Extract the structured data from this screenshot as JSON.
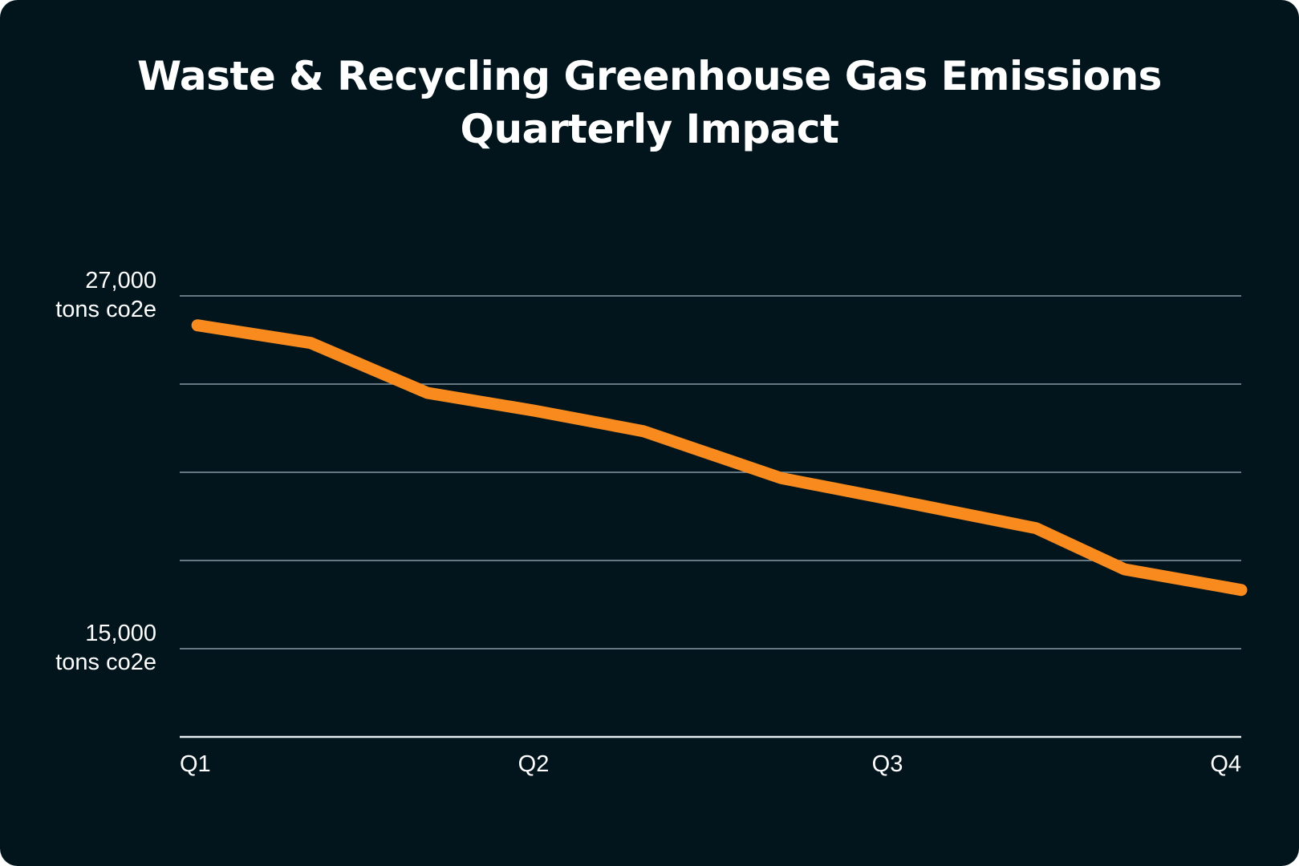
{
  "colors": {
    "background": "#02141c",
    "line": "#f98b1e",
    "grid": "#8a9aa3",
    "text": "#ffffff"
  },
  "chart_data": {
    "type": "line",
    "title": "Waste & Recycling Greenhouse Gas Emissions",
    "subtitle": "Quarterly Impact",
    "xlabel": "",
    "ylabel": "",
    "x_tick_labels": [
      "Q1",
      "Q2",
      "Q3",
      "Q4"
    ],
    "y_tick_labels": [
      {
        "value": 27000,
        "line1": "27,000",
        "line2": "tons co2e"
      },
      {
        "value": 15000,
        "line1": "15,000",
        "line2": "tons co2e"
      }
    ],
    "ylim": [
      12000,
      27000
    ],
    "y_gridlines": [
      27000,
      24000,
      21000,
      18000,
      15000
    ],
    "x_range": [
      1,
      4
    ],
    "series": [
      {
        "name": "Emissions",
        "x": [
          1.05,
          1.37,
          1.7,
          2.0,
          2.31,
          2.7,
          3.0,
          3.42,
          3.67,
          4.0
        ],
        "values": [
          26000,
          25400,
          23700,
          23100,
          22400,
          20800,
          20100,
          19100,
          17700,
          17000
        ]
      }
    ],
    "grid": true,
    "legend": "none"
  }
}
